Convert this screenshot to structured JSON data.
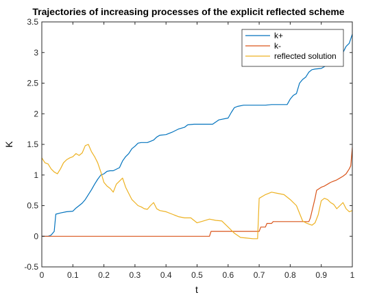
{
  "chart_data": {
    "type": "line",
    "title": "Trajectories of increasing processes of the explicit reflected scheme",
    "xlabel": "t",
    "ylabel": "K",
    "xlim": [
      0,
      1
    ],
    "ylim": [
      -0.5,
      3.5
    ],
    "xticks": [
      "0",
      "0.1",
      "0.2",
      "0.3",
      "0.4",
      "0.5",
      "0.6",
      "0.7",
      "0.8",
      "0.9",
      "1"
    ],
    "yticks": [
      "-0.5",
      "0",
      "0.5",
      "1",
      "1.5",
      "2",
      "2.5",
      "3",
      "3.5"
    ],
    "grid": false,
    "legend_position": "top-right",
    "series": [
      {
        "name": "k+",
        "color": "#0072BD",
        "x": [
          0,
          0.02,
          0.03,
          0.04,
          0.045,
          0.06,
          0.08,
          0.1,
          0.11,
          0.12,
          0.13,
          0.14,
          0.15,
          0.16,
          0.17,
          0.18,
          0.19,
          0.2,
          0.21,
          0.22,
          0.23,
          0.25,
          0.26,
          0.27,
          0.28,
          0.29,
          0.3,
          0.31,
          0.32,
          0.34,
          0.36,
          0.37,
          0.38,
          0.4,
          0.42,
          0.44,
          0.46,
          0.47,
          0.49,
          0.55,
          0.57,
          0.6,
          0.61,
          0.62,
          0.63,
          0.65,
          0.67,
          0.69,
          0.72,
          0.74,
          0.79,
          0.8,
          0.81,
          0.82,
          0.83,
          0.84,
          0.85,
          0.86,
          0.87,
          0.88,
          0.9,
          0.92,
          0.93,
          0.95,
          0.96,
          0.97,
          0.98,
          0.99,
          1.0
        ],
        "y": [
          0,
          0,
          0.02,
          0.08,
          0.36,
          0.38,
          0.4,
          0.41,
          0.46,
          0.5,
          0.54,
          0.6,
          0.68,
          0.76,
          0.85,
          0.93,
          1.0,
          1.02,
          1.06,
          1.07,
          1.07,
          1.12,
          1.23,
          1.3,
          1.35,
          1.43,
          1.47,
          1.52,
          1.53,
          1.53,
          1.57,
          1.62,
          1.65,
          1.66,
          1.7,
          1.75,
          1.78,
          1.82,
          1.83,
          1.83,
          1.9,
          1.93,
          2.02,
          2.1,
          2.12,
          2.14,
          2.14,
          2.14,
          2.14,
          2.15,
          2.15,
          2.24,
          2.3,
          2.33,
          2.5,
          2.56,
          2.6,
          2.68,
          2.72,
          2.73,
          2.74,
          2.8,
          2.85,
          2.88,
          2.9,
          3.0,
          3.1,
          3.15,
          3.3
        ]
      },
      {
        "name": "k-",
        "color": "#D95319",
        "x": [
          0,
          0.1,
          0.2,
          0.3,
          0.4,
          0.5,
          0.54,
          0.545,
          0.65,
          0.7,
          0.705,
          0.72,
          0.725,
          0.74,
          0.745,
          0.86,
          0.865,
          0.88,
          0.885,
          0.9,
          0.91,
          0.92,
          0.93,
          0.94,
          0.95,
          0.96,
          0.97,
          0.98,
          0.99,
          0.995,
          1.0
        ],
        "y": [
          0,
          0,
          0,
          0,
          0,
          0,
          0,
          0.08,
          0.08,
          0.08,
          0.15,
          0.15,
          0.21,
          0.21,
          0.24,
          0.24,
          0.3,
          0.62,
          0.75,
          0.8,
          0.82,
          0.85,
          0.88,
          0.9,
          0.92,
          0.95,
          0.98,
          1.02,
          1.1,
          1.15,
          1.45
        ]
      },
      {
        "name": "reflected solution",
        "color": "#EDB120",
        "x": [
          0,
          0.01,
          0.02,
          0.03,
          0.04,
          0.05,
          0.06,
          0.07,
          0.08,
          0.09,
          0.1,
          0.11,
          0.12,
          0.13,
          0.14,
          0.15,
          0.16,
          0.17,
          0.18,
          0.19,
          0.2,
          0.21,
          0.22,
          0.23,
          0.24,
          0.25,
          0.26,
          0.27,
          0.28,
          0.29,
          0.3,
          0.31,
          0.32,
          0.33,
          0.34,
          0.35,
          0.36,
          0.37,
          0.38,
          0.4,
          0.42,
          0.44,
          0.46,
          0.48,
          0.5,
          0.52,
          0.54,
          0.56,
          0.58,
          0.6,
          0.62,
          0.64,
          0.66,
          0.68,
          0.695,
          0.7,
          0.72,
          0.74,
          0.76,
          0.78,
          0.8,
          0.82,
          0.84,
          0.85,
          0.86,
          0.87,
          0.88,
          0.89,
          0.9,
          0.91,
          0.92,
          0.93,
          0.94,
          0.95,
          0.96,
          0.97,
          0.98,
          0.99,
          1.0
        ],
        "y": [
          1.28,
          1.2,
          1.18,
          1.1,
          1.05,
          1.02,
          1.1,
          1.2,
          1.25,
          1.28,
          1.3,
          1.35,
          1.32,
          1.36,
          1.48,
          1.5,
          1.38,
          1.3,
          1.2,
          1.05,
          0.88,
          0.82,
          0.78,
          0.72,
          0.85,
          0.9,
          0.95,
          0.8,
          0.7,
          0.6,
          0.55,
          0.5,
          0.48,
          0.45,
          0.44,
          0.5,
          0.55,
          0.45,
          0.42,
          0.4,
          0.36,
          0.32,
          0.3,
          0.3,
          0.22,
          0.25,
          0.28,
          0.26,
          0.25,
          0.15,
          0.05,
          -0.02,
          -0.03,
          -0.04,
          -0.04,
          0.62,
          0.68,
          0.72,
          0.7,
          0.68,
          0.6,
          0.5,
          0.25,
          0.22,
          0.2,
          0.18,
          0.22,
          0.35,
          0.58,
          0.62,
          0.6,
          0.55,
          0.52,
          0.45,
          0.5,
          0.55,
          0.45,
          0.4,
          0.42
        ]
      }
    ]
  }
}
